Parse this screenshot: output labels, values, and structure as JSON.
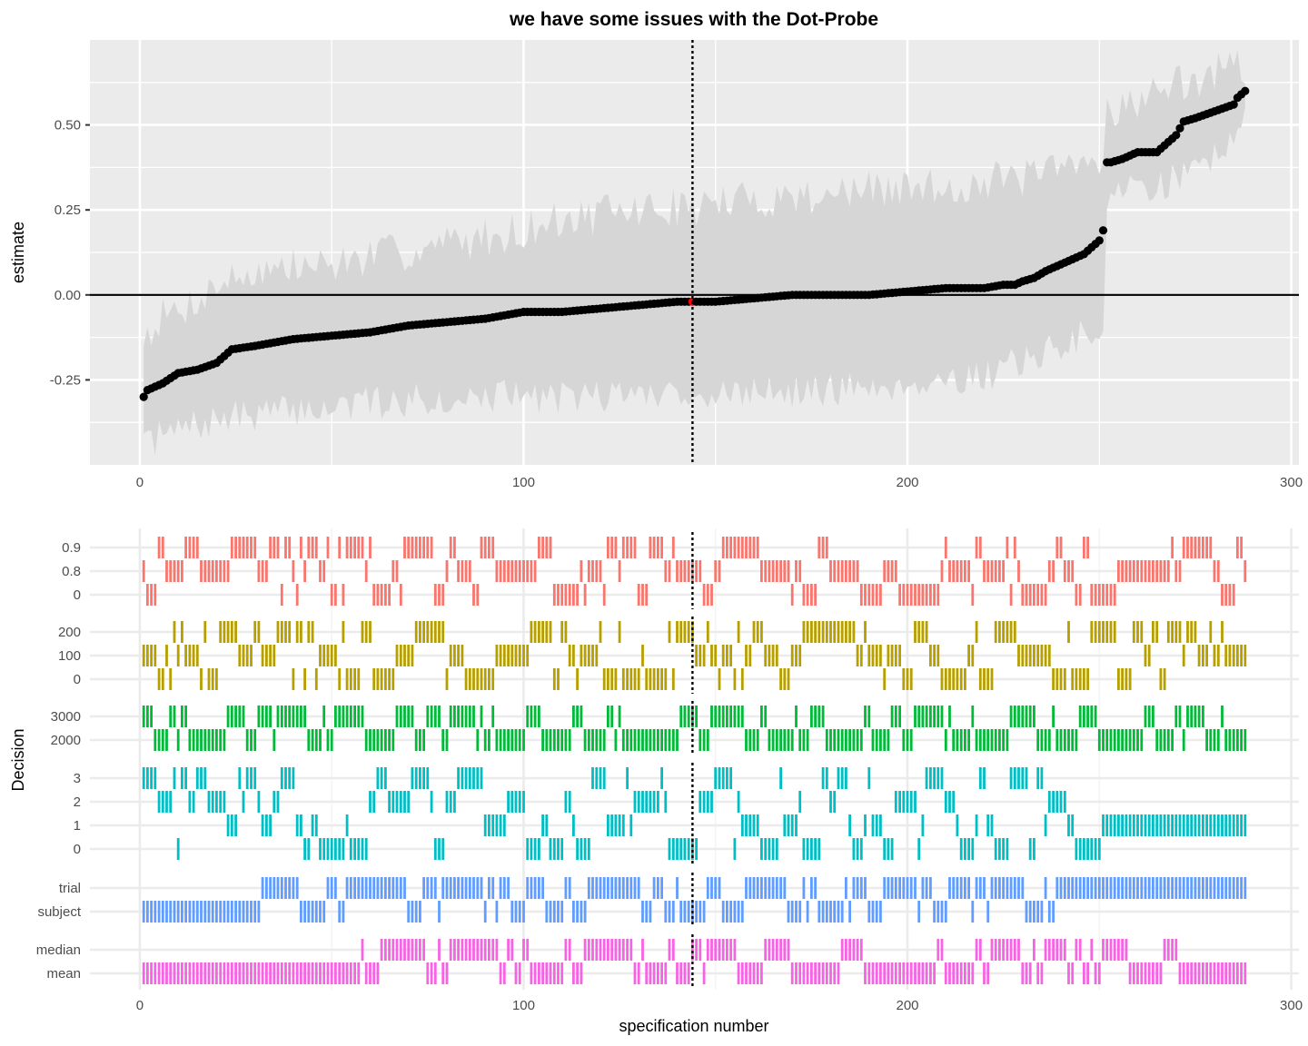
{
  "chart_data": [
    {
      "type": "scatter",
      "title": "we have some issues with the Dot-Probe",
      "xlabel": "",
      "ylabel": "estimate",
      "xlim": [
        -13,
        302
      ],
      "ylim": [
        -0.5,
        0.75
      ],
      "x_ticks": [
        0,
        100,
        200,
        300
      ],
      "y_ticks": [
        -0.25,
        0.0,
        0.25,
        0.5
      ],
      "y_tick_labels": [
        "-0.25",
        "0.00",
        "0.25",
        "0.50"
      ],
      "grid": true,
      "reference_line_y": 0,
      "highlight_x": 144,
      "n_specifications": 288,
      "estimate_profile": {
        "x": [
          1,
          2,
          4,
          6,
          10,
          15,
          20,
          24,
          30,
          40,
          50,
          60,
          70,
          80,
          90,
          100,
          110,
          120,
          130,
          140,
          144,
          150,
          160,
          170,
          180,
          190,
          200,
          210,
          220,
          225,
          228,
          230,
          233,
          236,
          240,
          244,
          246,
          248,
          250,
          251,
          252,
          253,
          256,
          260,
          265,
          268,
          270,
          272,
          275,
          280,
          285,
          286,
          288
        ],
        "y": [
          -0.3,
          -0.28,
          -0.27,
          -0.26,
          -0.23,
          -0.22,
          -0.2,
          -0.16,
          -0.15,
          -0.13,
          -0.12,
          -0.11,
          -0.09,
          -0.08,
          -0.07,
          -0.05,
          -0.05,
          -0.04,
          -0.03,
          -0.02,
          -0.02,
          -0.02,
          -0.01,
          0.0,
          0.0,
          0.0,
          0.01,
          0.02,
          0.02,
          0.03,
          0.03,
          0.04,
          0.05,
          0.07,
          0.09,
          0.11,
          0.12,
          0.14,
          0.16,
          0.19,
          0.39,
          0.39,
          0.4,
          0.42,
          0.42,
          0.45,
          0.47,
          0.51,
          0.52,
          0.54,
          0.56,
          0.58,
          0.6
        ]
      },
      "ci_profile": {
        "x": [
          1,
          5,
          10,
          20,
          30,
          50,
          70,
          90,
          110,
          130,
          144,
          160,
          180,
          200,
          220,
          240,
          250,
          251,
          252,
          260,
          270,
          280,
          288
        ],
        "lower": [
          -0.45,
          -0.42,
          -0.4,
          -0.37,
          -0.35,
          -0.33,
          -0.31,
          -0.3,
          -0.3,
          -0.29,
          -0.29,
          -0.29,
          -0.28,
          -0.26,
          -0.24,
          -0.15,
          -0.1,
          -0.08,
          0.28,
          0.31,
          0.34,
          0.41,
          0.52
        ],
        "upper": [
          -0.12,
          -0.07,
          -0.05,
          0.03,
          0.07,
          0.09,
          0.13,
          0.17,
          0.22,
          0.25,
          0.26,
          0.28,
          0.3,
          0.31,
          0.33,
          0.36,
          0.4,
          0.42,
          0.55,
          0.57,
          0.62,
          0.65,
          0.68
        ]
      },
      "colors": {
        "panel": "#ebebeb",
        "grid": "#ffffff",
        "ribbon": "#d6d6d6",
        "point": "#000000",
        "highlight": "#ff0000"
      }
    },
    {
      "type": "heatmap",
      "xlabel": "specification number",
      "ylabel": "Decision",
      "xlim": [
        -13,
        302
      ],
      "x_ticks": [
        0,
        100,
        200,
        300
      ],
      "highlight_x": 144,
      "n_specifications": 288,
      "facets": [
        {
          "levels": [
            "0.9",
            "0.8",
            "0"
          ],
          "color": "#F8766D",
          "seed": 11,
          "runs": []
        },
        {
          "levels": [
            "200",
            "100",
            "0"
          ],
          "color": "#B79F00",
          "seed": 23,
          "runs": []
        },
        {
          "levels": [
            "3000",
            "2000"
          ],
          "color": "#00BA38",
          "seed": 37,
          "runs": []
        },
        {
          "levels": [
            "3",
            "2",
            "1",
            "0"
          ],
          "color": "#00BFC4",
          "seed": 53,
          "runs": [
            [
              1,
              250,
              null
            ],
            [
              251,
              288,
              "1"
            ]
          ]
        },
        {
          "levels": [
            "trial",
            "subject"
          ],
          "color": "#619CFF",
          "seed": 71,
          "runs": [
            [
              1,
              30,
              "subject"
            ],
            [
              31,
              240,
              null
            ],
            [
              241,
              288,
              "trial"
            ]
          ]
        },
        {
          "levels": [
            "median",
            "mean"
          ],
          "color": "#F564E3",
          "seed": 89,
          "runs": [
            [
              1,
              36,
              "mean"
            ],
            [
              37,
              270,
              null
            ],
            [
              271,
              288,
              "mean"
            ]
          ]
        }
      ]
    }
  ]
}
